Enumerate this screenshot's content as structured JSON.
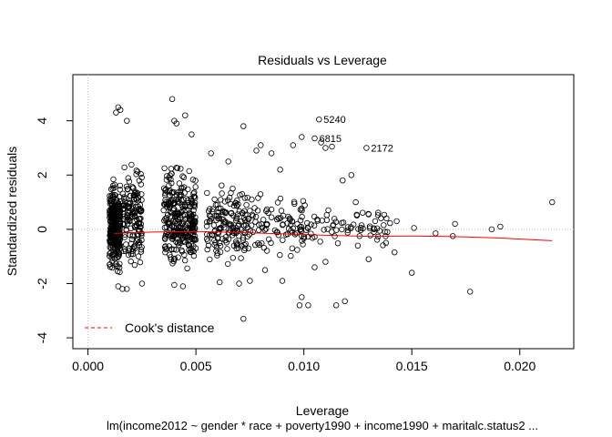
{
  "chart_data": {
    "type": "scatter",
    "title": "Residuals vs Leverage",
    "xlabel": "Leverage",
    "ylabel": "Standardized residuals",
    "subtitle": "lm(income2012 ~ gender * race + poverty1990 + income1990 + maritalc.status2 ...",
    "xlim": [
      -0.0007,
      0.0225
    ],
    "ylim": [
      -4.4,
      5.7
    ],
    "x_ticks": [
      0.0,
      0.005,
      0.01,
      0.015,
      0.02
    ],
    "x_tick_labels": [
      "0.000",
      "0.005",
      "0.010",
      "0.015",
      "0.020"
    ],
    "y_ticks": [
      -4,
      -2,
      0,
      2,
      4
    ],
    "y_tick_labels": [
      "-4",
      "-2",
      "0",
      "2",
      "4"
    ],
    "grid": false,
    "reference_lines": {
      "h": 0,
      "v": 0
    },
    "point_style": "open-circle",
    "dense_clusters": [
      {
        "x_range": [
          0.001,
          0.0015
        ],
        "y_range": [
          -2.0,
          2.2
        ]
      },
      {
        "x_range": [
          0.0016,
          0.0025
        ],
        "y_range": [
          -2.2,
          3.2
        ]
      },
      {
        "x_range": [
          0.0035,
          0.005
        ],
        "y_range": [
          -2.1,
          2.8
        ]
      },
      {
        "x_range": [
          0.0055,
          0.0075
        ],
        "y_range": [
          -1.8,
          2.2
        ]
      },
      {
        "x_range": [
          0.0075,
          0.01
        ],
        "y_range": [
          -1.6,
          2.0
        ]
      },
      {
        "x_range": [
          0.01,
          0.014
        ],
        "y_range": [
          -1.0,
          1.2
        ]
      }
    ],
    "points": [
      [
        0.0013,
        4.3
      ],
      [
        0.0014,
        4.5
      ],
      [
        0.0015,
        4.4
      ],
      [
        0.0018,
        4.0
      ],
      [
        0.0039,
        4.8
      ],
      [
        0.004,
        4.0
      ],
      [
        0.0041,
        3.9
      ],
      [
        0.0045,
        4.2
      ],
      [
        0.0048,
        3.5
      ],
      [
        0.0057,
        2.8
      ],
      [
        0.0065,
        2.5
      ],
      [
        0.0072,
        3.8
      ],
      [
        0.0078,
        2.9
      ],
      [
        0.008,
        3.1
      ],
      [
        0.0085,
        2.8
      ],
      [
        0.0089,
        2.2
      ],
      [
        0.0095,
        3.1
      ],
      [
        0.0099,
        3.4
      ],
      [
        0.0107,
        4.05
      ],
      [
        0.0105,
        3.35
      ],
      [
        0.0108,
        3.2
      ],
      [
        0.011,
        3.0
      ],
      [
        0.0113,
        3.05
      ],
      [
        0.0118,
        1.8
      ],
      [
        0.0122,
        2.0
      ],
      [
        0.0124,
        1.0
      ],
      [
        0.0129,
        3.0
      ],
      [
        0.013,
        0.55
      ],
      [
        0.0133,
        0.3
      ],
      [
        0.0143,
        0.3
      ],
      [
        0.0151,
        0.05
      ],
      [
        0.0161,
        -0.15
      ],
      [
        0.0169,
        -0.25
      ],
      [
        0.017,
        0.2
      ],
      [
        0.0187,
        0.0
      ],
      [
        0.0191,
        0.1
      ],
      [
        0.0215,
        1.0
      ],
      [
        0.0014,
        -2.1
      ],
      [
        0.0016,
        -2.2
      ],
      [
        0.0018,
        -2.2
      ],
      [
        0.0025,
        -2.0
      ],
      [
        0.004,
        -2.05
      ],
      [
        0.0044,
        -2.1
      ],
      [
        0.0061,
        -1.95
      ],
      [
        0.007,
        -2.0
      ],
      [
        0.0075,
        -1.9
      ],
      [
        0.0072,
        -3.3
      ],
      [
        0.0099,
        -2.5
      ],
      [
        0.0102,
        -2.8
      ],
      [
        0.0098,
        -2.8
      ],
      [
        0.0115,
        -2.8
      ],
      [
        0.0119,
        -2.65
      ],
      [
        0.013,
        -1.1
      ],
      [
        0.0142,
        -0.85
      ],
      [
        0.015,
        -1.6
      ],
      [
        0.0177,
        -2.3
      ],
      [
        0.011,
        -1.2
      ],
      [
        0.0125,
        -0.6
      ],
      [
        0.0138,
        -0.5
      ],
      [
        0.009,
        -1.9
      ],
      [
        0.0105,
        -1.4
      ],
      [
        0.0082,
        -1.5
      ]
    ],
    "labeled_points": [
      {
        "label": "5240",
        "x": 0.0107,
        "y": 4.05
      },
      {
        "label": "6815",
        "x": 0.0105,
        "y": 3.35
      },
      {
        "label": "2172",
        "x": 0.0129,
        "y": 3.0
      }
    ],
    "smooth_line": {
      "color": "#ff0000",
      "points": [
        [
          0.0012,
          -0.15
        ],
        [
          0.003,
          -0.1
        ],
        [
          0.005,
          -0.08
        ],
        [
          0.007,
          -0.12
        ],
        [
          0.009,
          -0.17
        ],
        [
          0.011,
          -0.22
        ],
        [
          0.013,
          -0.26
        ],
        [
          0.015,
          -0.25
        ],
        [
          0.017,
          -0.27
        ],
        [
          0.019,
          -0.32
        ],
        [
          0.0215,
          -0.42
        ]
      ]
    },
    "cooks_distance": {
      "legend_label": "Cook's distance",
      "color": "#ff0000",
      "legend_position": "bottom-left"
    },
    "colors": {
      "points": "#000000",
      "reference": "#bebebe",
      "smooth": "#ff0000"
    }
  }
}
